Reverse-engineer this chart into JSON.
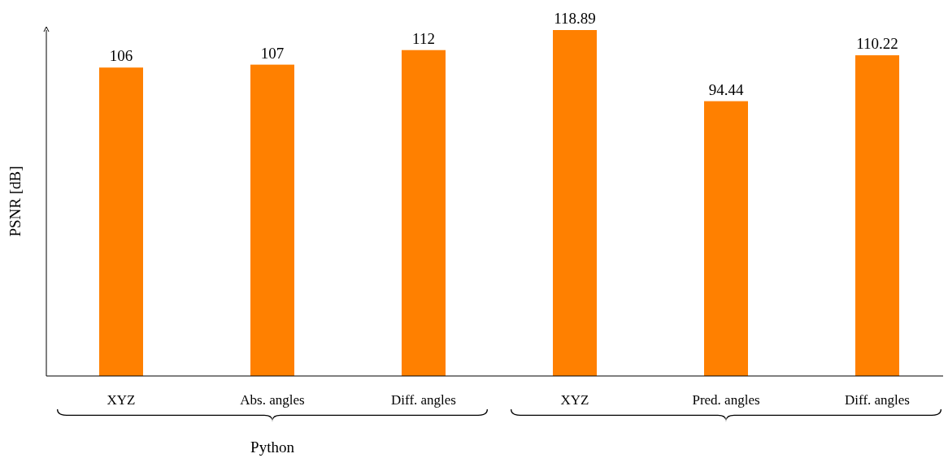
{
  "chart_data": {
    "type": "bar",
    "ylabel": "PSNR [dB]",
    "categories": [
      "XYZ",
      "Abs. angles",
      "Diff. angles",
      "XYZ",
      "Pred. angles",
      "Diff. angles"
    ],
    "values": [
      106,
      107,
      112,
      118.89,
      94.44,
      110.22
    ],
    "color": "#ff8000",
    "data_labels": true,
    "annotations": [
      "Python"
    ]
  }
}
